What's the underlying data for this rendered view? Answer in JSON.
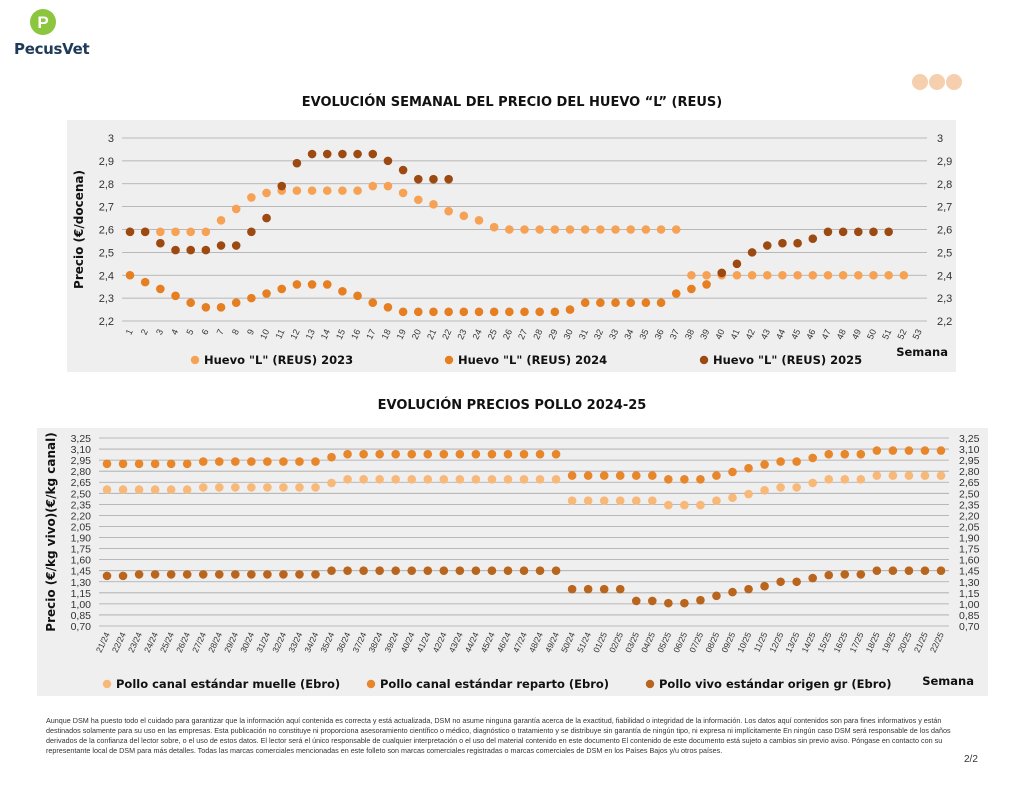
{
  "brand": {
    "name": "PecusVet",
    "logo_letter": "P"
  },
  "page_number": "2/2",
  "disclaimer": "Aunque DSM ha puesto todo el cuidado para garantizar que la información aquí contenida es correcta y está actualizada, DSM no asume ninguna garantía acerca de la exactitud, fiabilidad o integridad de la información. Los datos aquí contenidos son para fines informativos y están destinados solamente para su uso en las empresas. Esta publicación no constituye ni proporciona asesoramiento científico o médico, diagnóstico o tratamiento y se distribuye sin garantía de ningún tipo, ni expresa ni implícitamente En ningún caso DSM será responsable de los daños derivados de la confianza del lector sobre, o el uso de estos datos. El lector será el único responsable de cualquier interpretación o el uso del material contenido en este documento El contenido de este documento está sujeto a cambios sin previo aviso. Póngase en contacto con su representante local de DSM para más detalles. Todas las marcas comerciales mencionadas en este folleto son marcas comerciales registradas o marcas comerciales de DSM en los Países Bajos y/u otros países.",
  "chart_data": [
    {
      "type": "scatter",
      "title": "EVOLUCIÓN SEMANAL DEL PRECIO DEL HUEVO “L” (REUS)",
      "ylabel": "Precio (€/docena)",
      "xlabel": "Semana",
      "ylim": [
        2.2,
        3
      ],
      "yticks": [
        "2,2",
        "2,3",
        "2,4",
        "2,5",
        "2,6",
        "2,7",
        "2,8",
        "2,9",
        "3"
      ],
      "categories": [
        "1",
        "2",
        "3",
        "4",
        "5",
        "6",
        "7",
        "8",
        "9",
        "10",
        "11",
        "12",
        "13",
        "14",
        "15",
        "16",
        "17",
        "18",
        "19",
        "20",
        "21",
        "22",
        "23",
        "24",
        "25",
        "26",
        "27",
        "28",
        "29",
        "30",
        "31",
        "32",
        "33",
        "34",
        "35",
        "36",
        "37",
        "38",
        "39",
        "40",
        "41",
        "42",
        "43",
        "44",
        "45",
        "46",
        "47",
        "48",
        "49",
        "50",
        "51",
        "52",
        "53"
      ],
      "grid": true,
      "legend": "bottom",
      "series": [
        {
          "name": "Huevo \"L\" (REUS) 2023",
          "color": "#f6a154",
          "values": [
            2.59,
            2.59,
            2.59,
            2.59,
            2.59,
            2.59,
            2.64,
            2.69,
            2.74,
            2.76,
            2.77,
            2.77,
            2.77,
            2.77,
            2.77,
            2.77,
            2.79,
            2.79,
            2.76,
            2.73,
            2.71,
            2.68,
            2.66,
            2.64,
            2.61,
            2.6,
            2.6,
            2.6,
            2.6,
            2.6,
            2.6,
            2.6,
            2.6,
            2.6,
            2.6,
            2.6,
            2.6,
            2.4,
            2.4,
            2.4,
            2.4,
            2.4,
            2.4,
            2.4,
            2.4,
            2.4,
            2.4,
            2.4,
            2.4,
            2.4,
            2.4,
            2.4,
            null
          ]
        },
        {
          "name": "Huevo \"L\" (REUS) 2024",
          "color": "#e67e22",
          "values": [
            2.4,
            2.37,
            2.34,
            2.31,
            2.28,
            2.26,
            2.26,
            2.28,
            2.3,
            2.32,
            2.34,
            2.36,
            2.36,
            2.36,
            2.33,
            2.31,
            2.28,
            2.26,
            2.24,
            2.24,
            2.24,
            2.24,
            2.24,
            2.24,
            2.24,
            2.24,
            2.24,
            2.24,
            2.24,
            2.25,
            2.28,
            2.28,
            2.28,
            2.28,
            2.28,
            2.28,
            2.32,
            2.34,
            2.36,
            2.41,
            null,
            null,
            null,
            null,
            null,
            null,
            null,
            null,
            null,
            null,
            null,
            null,
            null
          ]
        },
        {
          "name": "Huevo \"L\" (REUS) 2025",
          "color": "#9c4a12",
          "values": [
            2.59,
            2.59,
            2.54,
            2.51,
            2.51,
            2.51,
            2.53,
            2.53,
            2.59,
            2.65,
            2.79,
            2.89,
            2.93,
            2.93,
            2.93,
            2.93,
            2.93,
            2.9,
            2.86,
            2.82,
            2.82,
            2.82,
            null,
            null,
            null,
            null,
            null,
            null,
            null,
            null,
            null,
            null,
            null,
            null,
            null,
            null,
            null,
            null,
            null,
            2.41,
            2.45,
            2.5,
            2.53,
            2.54,
            2.54,
            2.56,
            2.59,
            2.59,
            2.59,
            2.59,
            2.59,
            null,
            null
          ]
        }
      ]
    },
    {
      "type": "scatter",
      "title": "EVOLUCIÓN PRECIOS POLLO 2024-25",
      "ylabel": "Precio (€/kg vivo)(€/kg canal)",
      "xlabel": "Semana",
      "ylim": [
        0.7,
        3.25
      ],
      "yticks": [
        "0,70",
        "0,85",
        "1,00",
        "1,15",
        "1,30",
        "1,45",
        "1,60",
        "1,75",
        "1,90",
        "2,05",
        "2,20",
        "2,35",
        "2,50",
        "2,65",
        "2,80",
        "2,95",
        "3,10",
        "3,25"
      ],
      "categories": [
        "21/24",
        "22/24",
        "23/24",
        "24/24",
        "25/24",
        "26/24",
        "27/24",
        "28/24",
        "29/24",
        "30/24",
        "31/24",
        "32/24",
        "33/24",
        "34/24",
        "35/24",
        "36/24",
        "37/24",
        "38/24",
        "39/24",
        "40/24",
        "41/24",
        "42/24",
        "43/24",
        "44/24",
        "45/24",
        "46/24",
        "47/24",
        "48/24",
        "49/24",
        "50/24",
        "51/24",
        "01/25",
        "02/25",
        "03/25",
        "04/25",
        "05/25",
        "06/25",
        "07/25",
        "08/25",
        "09/25",
        "10/25",
        "11/25",
        "12/25",
        "13/25",
        "14/25",
        "15/25",
        "16/25",
        "17/25",
        "18/25",
        "19/25",
        "20/25",
        "21/25",
        "22/25"
      ],
      "grid": true,
      "legend": "bottom",
      "series": [
        {
          "name": "Pollo canal estándar muelle (Ebro)",
          "color": "#f8b877",
          "values": [
            2.55,
            2.55,
            2.55,
            2.55,
            2.55,
            2.55,
            2.58,
            2.58,
            2.58,
            2.58,
            2.58,
            2.58,
            2.58,
            2.58,
            2.64,
            2.69,
            2.69,
            2.69,
            2.69,
            2.69,
            2.69,
            2.69,
            2.69,
            2.69,
            2.69,
            2.69,
            2.69,
            2.69,
            2.69,
            2.4,
            2.4,
            2.4,
            2.4,
            2.4,
            2.4,
            2.34,
            2.34,
            2.34,
            2.4,
            2.44,
            2.49,
            2.54,
            2.58,
            2.58,
            2.64,
            2.69,
            2.69,
            2.69,
            2.74,
            2.74,
            2.74,
            2.74,
            2.74
          ]
        },
        {
          "name": "Pollo canal estándar reparto (Ebro)",
          "color": "#e8862c",
          "values": [
            2.9,
            2.9,
            2.9,
            2.9,
            2.9,
            2.9,
            2.93,
            2.93,
            2.93,
            2.93,
            2.93,
            2.93,
            2.93,
            2.93,
            2.99,
            3.03,
            3.03,
            3.03,
            3.03,
            3.03,
            3.03,
            3.03,
            3.03,
            3.03,
            3.03,
            3.03,
            3.03,
            3.03,
            3.03,
            2.74,
            2.74,
            2.74,
            2.74,
            2.74,
            2.74,
            2.69,
            2.69,
            2.69,
            2.74,
            2.79,
            2.84,
            2.89,
            2.93,
            2.93,
            2.98,
            3.03,
            3.03,
            3.03,
            3.08,
            3.08,
            3.08,
            3.08,
            3.08
          ]
        },
        {
          "name": "Pollo vivo estándar origen gr (Ebro)",
          "color": "#b9651e",
          "values": [
            1.38,
            1.38,
            1.4,
            1.4,
            1.4,
            1.4,
            1.4,
            1.4,
            1.4,
            1.4,
            1.4,
            1.4,
            1.4,
            1.4,
            1.45,
            1.45,
            1.45,
            1.45,
            1.45,
            1.45,
            1.45,
            1.45,
            1.45,
            1.45,
            1.45,
            1.45,
            1.45,
            1.45,
            1.45,
            1.2,
            1.2,
            1.2,
            1.2,
            1.04,
            1.04,
            1.01,
            1.01,
            1.05,
            1.11,
            1.16,
            1.2,
            1.24,
            1.3,
            1.3,
            1.35,
            1.39,
            1.4,
            1.4,
            1.45,
            1.45,
            1.45,
            1.45,
            1.45
          ]
        }
      ]
    }
  ]
}
